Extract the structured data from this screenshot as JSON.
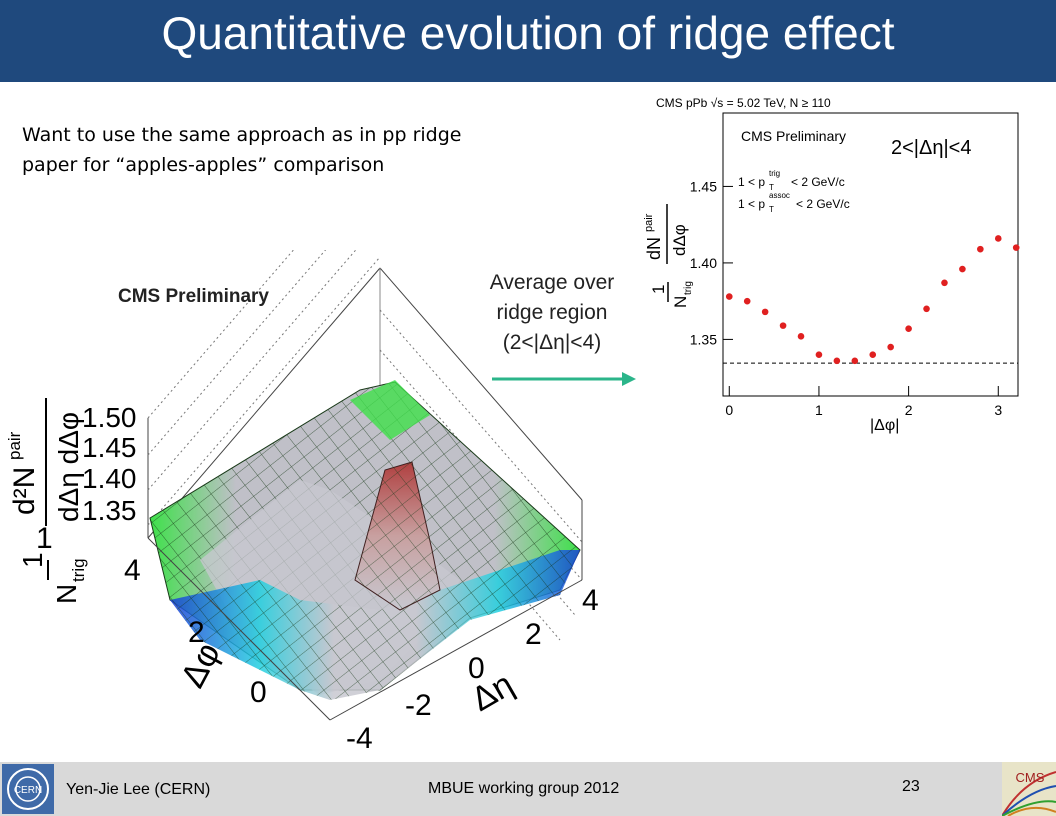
{
  "slide": {
    "title": "Quantitative evolution of ridge effect",
    "intro_line1": "Want to use the same approach as in pp ridge",
    "intro_line2": "paper for “apples-apples” comparison",
    "caption_line1": "Average over",
    "caption_line2": "ridge region",
    "caption_line3": "(2<|Δη|<4)",
    "arrow_color": "#2bb58a"
  },
  "footer": {
    "author": "Yen-Jie Lee (CERN)",
    "group": "MBUE working group 2012",
    "page": "23",
    "left_logo_text": "CERN",
    "right_logo_text": "CMS"
  },
  "chart_data": [
    {
      "type": "surface",
      "title": "CMS Preliminary",
      "zlabel_numerator": "d²N",
      "zlabel_sup": "pair",
      "zlabel_denominator": "dΔη dΔφ",
      "zlabel_prefactor": "1",
      "zlabel_prefactor_den": "N",
      "zlabel_prefactor_sub": "trig",
      "xlabel": "Δη",
      "ylabel": "Δφ",
      "z_ticks": [
        "1.50",
        "1.45",
        "1.40",
        "1.35"
      ],
      "x_ticks": [
        "-4",
        "-2",
        "0",
        "2",
        "4"
      ],
      "y_ticks": [
        "0",
        "2",
        "4"
      ],
      "colors": [
        "#1b3fd6",
        "#19b8e0",
        "#22e0c0",
        "#3ee04a",
        "#c0c0c8",
        "#a05050"
      ]
    },
    {
      "type": "scatter",
      "header": "CMS pPb √s = 5.02 TeV, N ≥ 110",
      "title": "CMS Preliminary",
      "region_label": "2<|Δη|<4",
      "cut1": "1 < p_T^trig < 2 GeV/c",
      "cut1_lhs": "1 < p",
      "cut1_sup": "trig",
      "cut1_sub": "T",
      "cut1_rhs": "< 2 GeV/c",
      "cut2_lhs": "1 < p",
      "cut2_sup": "assoc",
      "cut2_sub": "T",
      "cut2_rhs": "< 2 GeV/c",
      "xlabel": "|Δφ|",
      "ylabel_prefactor": "1",
      "ylabel_prefactor_den": "N",
      "ylabel_prefactor_sub": "trig",
      "ylabel_numerator": "dN",
      "ylabel_sup": "pair",
      "ylabel_denominator": "dΔφ",
      "xlim": [
        -0.07,
        3.22
      ],
      "ylim": [
        1.313,
        1.498
      ],
      "x_ticks": [
        0,
        1,
        2,
        3
      ],
      "y_ticks": [
        1.35,
        1.4,
        1.45
      ],
      "y_tick_labels": [
        "1.35",
        "1.40",
        "1.45"
      ],
      "x_tick_labels": [
        "0",
        "1",
        "2",
        "3"
      ],
      "baseline": 1.3345,
      "point_color": "#e02020",
      "x": [
        0.0,
        0.2,
        0.4,
        0.6,
        0.8,
        1.0,
        1.2,
        1.4,
        1.6,
        1.8,
        2.0,
        2.2,
        2.4,
        2.6,
        2.8,
        3.0,
        3.2
      ],
      "y": [
        1.378,
        1.375,
        1.368,
        1.359,
        1.352,
        1.34,
        1.336,
        1.336,
        1.34,
        1.345,
        1.357,
        1.37,
        1.387,
        1.396,
        1.409,
        1.416,
        1.41
      ]
    }
  ]
}
